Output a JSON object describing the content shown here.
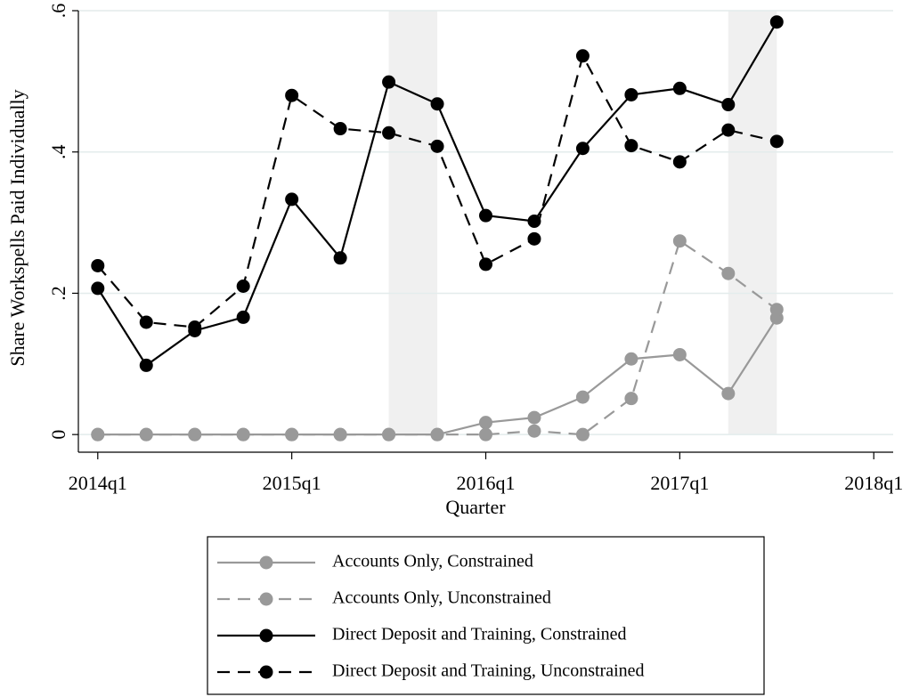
{
  "chart_data": {
    "type": "line",
    "x_label": "Quarter",
    "y_label": "Share Workspells Paid Individually",
    "x": [
      216,
      217,
      218,
      219,
      220,
      221,
      222,
      223,
      224,
      225,
      226,
      227,
      228,
      229,
      230
    ],
    "xlim": [
      215.6,
      232.4
    ],
    "xticks": [
      {
        "value": 216,
        "label": "2014q1"
      },
      {
        "value": 220,
        "label": "2015q1"
      },
      {
        "value": 224,
        "label": "2016q1"
      },
      {
        "value": 228,
        "label": "2017q1"
      },
      {
        "value": 232,
        "label": "2018q1"
      }
    ],
    "ylim": [
      -0.025,
      0.6
    ],
    "yticks": [
      0,
      {
        "value": 0.2,
        "label": ".2"
      },
      {
        "value": 0.4,
        "label": ".4"
      },
      {
        "value": 0.6,
        "label": ".6"
      }
    ],
    "grid": true,
    "shaded_periods": [
      [
        222,
        223
      ],
      [
        229,
        230
      ]
    ],
    "shade_color": "#f0f0f0",
    "series": [
      {
        "name": "Accounts Only, Constrained",
        "color": "#999999",
        "dashed": false,
        "values": [
          0,
          0,
          0,
          0,
          0,
          0,
          0,
          0,
          0.017,
          0.024,
          0.053,
          0.107,
          0.113,
          0.058,
          0.165
        ]
      },
      {
        "name": "Accounts Only, Unconstrained",
        "color": "#999999",
        "dashed": true,
        "values": [
          0,
          0,
          0,
          0,
          0,
          0,
          0,
          0,
          0,
          0.005,
          0,
          0.051,
          0.274,
          0.228,
          0.177
        ]
      },
      {
        "name": "Direct Deposit and Training, Constrained",
        "color": "#000000",
        "dashed": false,
        "values": [
          0.207,
          0.098,
          0.147,
          0.166,
          0.333,
          0.25,
          0.499,
          0.468,
          0.31,
          0.302,
          0.405,
          0.481,
          0.49,
          0.467,
          0.584
        ]
      },
      {
        "name": "Direct Deposit and Training, Unconstrained",
        "color": "#000000",
        "dashed": true,
        "values": [
          0.239,
          0.159,
          0.152,
          0.21,
          0.48,
          0.433,
          0.427,
          0.408,
          0.241,
          0.277,
          0.536,
          0.409,
          0.386,
          0.431,
          0.415
        ]
      }
    ]
  }
}
